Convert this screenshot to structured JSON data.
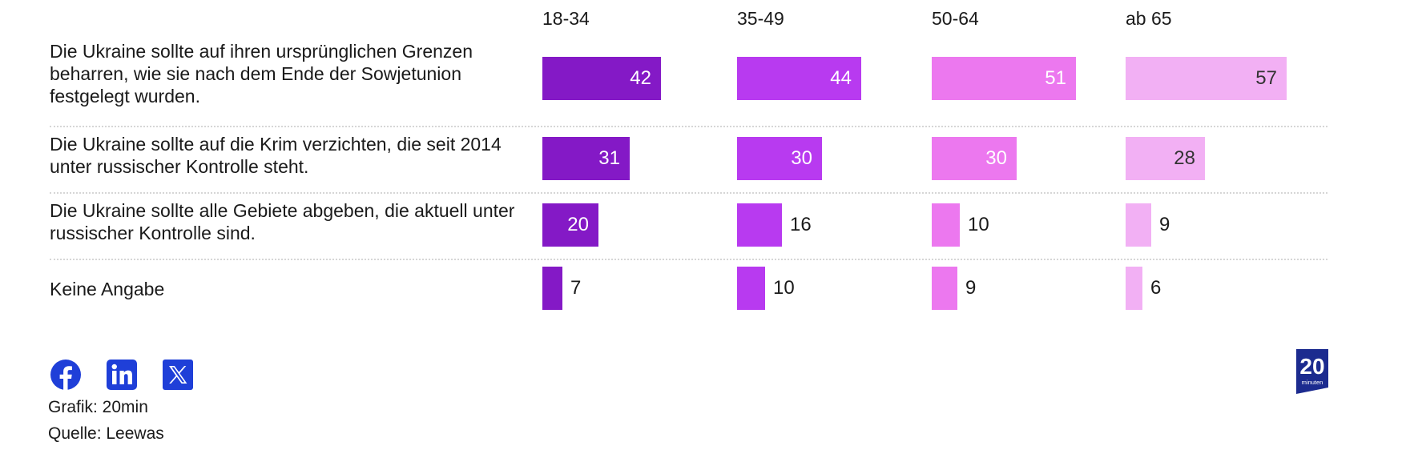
{
  "chart_data": {
    "type": "bar",
    "orientation": "horizontal",
    "layout": "small-multiples",
    "groups": [
      "18-34",
      "35-49",
      "50-64",
      "ab 65"
    ],
    "categories": [
      "Die Ukraine sollte auf ihren ursprünglichen Grenzen beharren, wie sie nach dem Ende der Sowjetunion festgelegt wurden.",
      "Die Ukraine sollte auf die Krim verzichten, die seit 2014 unter russischer Kontrolle steht.",
      "Die Ukraine sollte alle Gebiete abgeben, die aktuell unter russischer Kontrolle sind.",
      "Keine Angabe"
    ],
    "series": [
      {
        "name": "18-34",
        "color": "#8419c6",
        "label_color": "#ffffff",
        "values": [
          42,
          31,
          20,
          7
        ]
      },
      {
        "name": "35-49",
        "color": "#b83af0",
        "label_color": "#ffffff",
        "values": [
          44,
          30,
          16,
          10
        ]
      },
      {
        "name": "50-64",
        "color": "#ec78ef",
        "label_color": "#ffffff",
        "values": [
          51,
          30,
          10,
          9
        ]
      },
      {
        "name": "ab 65",
        "color": "#f2b0f4",
        "label_color": "#333333",
        "values": [
          57,
          28,
          9,
          6
        ]
      }
    ],
    "xlim": [
      0,
      60
    ],
    "grid": false
  },
  "footer": {
    "social_icons": [
      "facebook-icon",
      "linkedin-icon",
      "x-icon"
    ],
    "grafik": "Grafik: 20min",
    "quelle": "Quelle: Leewas",
    "logo_text_top": "20",
    "logo_text_bottom": "minuten"
  },
  "colors": {
    "social_blue": "#1f3fd8",
    "logo_navy": "#1c2b8f"
  }
}
